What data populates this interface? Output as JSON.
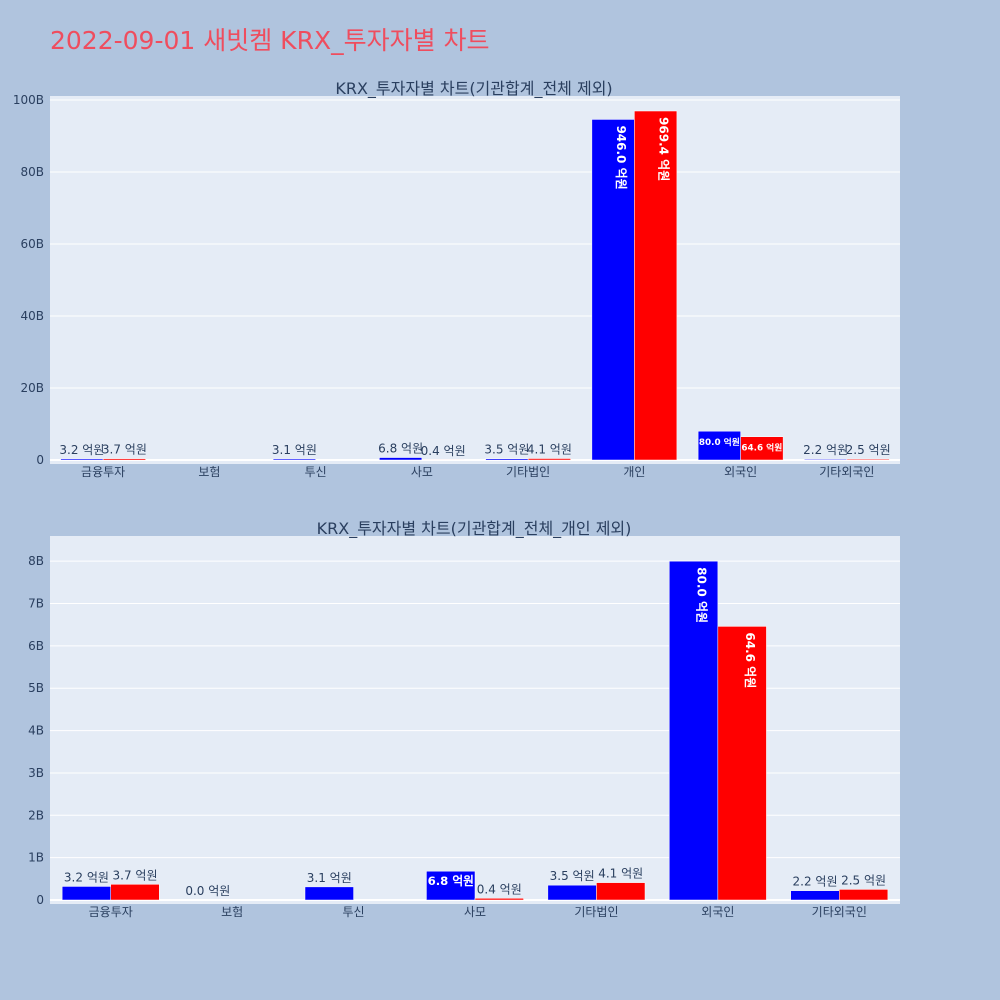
{
  "title": "2022-09-01 새빗켐 KRX_투자자별 차트",
  "colors": {
    "buy": "#0000ff",
    "sell": "#ff0000",
    "plot_bg": "#e5ecf6",
    "page_bg": "#b0c4de"
  },
  "chart_data": [
    {
      "type": "bar",
      "title": "KRX_투자자별 차트(기관합계_전체 제외)",
      "categories": [
        "금융투자",
        "보험",
        "투신",
        "사모",
        "기타법인",
        "개인",
        "외국인",
        "기타외국인"
      ],
      "ylim": [
        0,
        100000000000
      ],
      "yticks": [
        0,
        20000000000,
        40000000000,
        60000000000,
        80000000000,
        100000000000
      ],
      "ytick_labels": [
        "0",
        "20B",
        "40B",
        "60B",
        "80B",
        "100B"
      ],
      "grid": true,
      "series": [
        {
          "values": [
            320000000,
            null,
            310000000,
            680000000,
            350000000,
            94600000000,
            8000000000,
            220000000
          ],
          "labels": [
            "3.2 억원",
            "",
            "3.1 억원",
            "6.8 억원",
            "3.5 억원",
            "946.0 억원",
            "80.0 억원",
            "2.2 억원"
          ]
        },
        {
          "values": [
            370000000,
            null,
            null,
            40000000,
            410000000,
            96940000000,
            6460000000,
            250000000
          ],
          "labels": [
            "3.7 억원",
            "",
            "",
            "0.4 억원",
            "4.1 억원",
            "969.4 억원",
            "64.6 억원",
            "2.5 억원"
          ]
        }
      ]
    },
    {
      "type": "bar",
      "title": "KRX_투자자별 차트(기관합계_전체_개인 제외)",
      "categories": [
        "금융투자",
        "보험",
        "투신",
        "사모",
        "기타법인",
        "외국인",
        "기타외국인"
      ],
      "ylim": [
        0,
        8500000000
      ],
      "yticks": [
        0,
        1000000000,
        2000000000,
        3000000000,
        4000000000,
        5000000000,
        6000000000,
        7000000000,
        8000000000
      ],
      "ytick_labels": [
        "0",
        "1B",
        "2B",
        "3B",
        "4B",
        "5B",
        "6B",
        "7B",
        "8B"
      ],
      "grid": true,
      "series": [
        {
          "values": [
            320000000,
            0,
            310000000,
            680000000,
            350000000,
            8000000000,
            220000000
          ],
          "labels": [
            "3.2 억원",
            "0.0 억원",
            "3.1 억원",
            "6.8 억원",
            "3.5 억원",
            "80.0 억원",
            "2.2 억원"
          ]
        },
        {
          "values": [
            370000000,
            null,
            null,
            40000000,
            410000000,
            6460000000,
            250000000
          ],
          "labels": [
            "3.7 억원",
            "",
            "",
            "0.4 억원",
            "4.1 억원",
            "64.6 억원",
            "2.5 억원"
          ]
        }
      ]
    }
  ]
}
